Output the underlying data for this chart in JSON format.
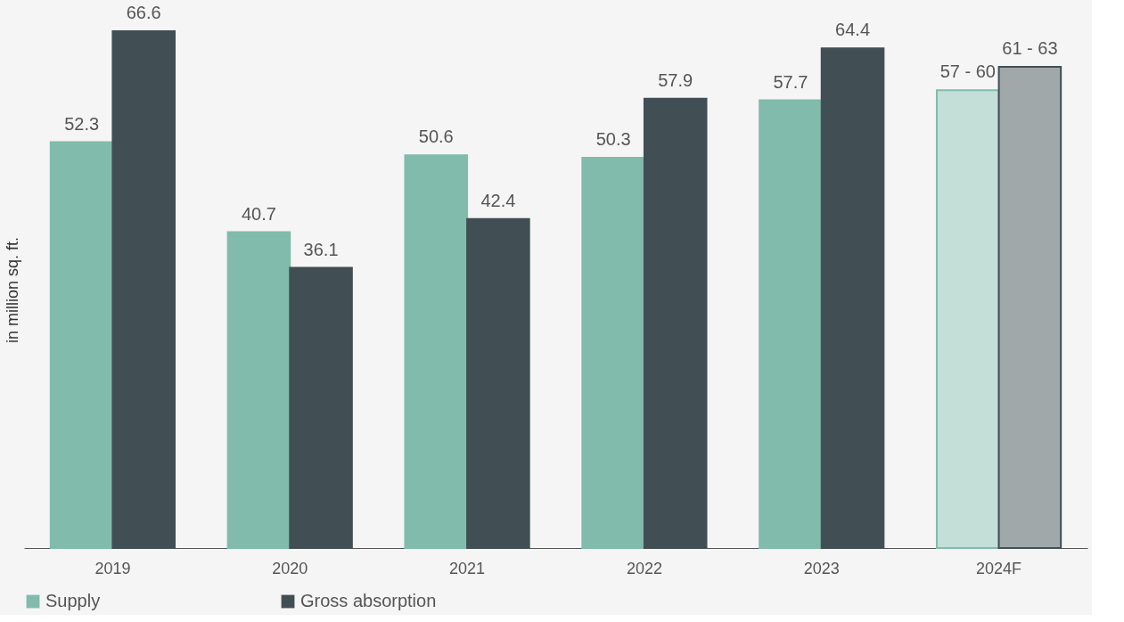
{
  "chart_data": {
    "type": "bar",
    "ylabel": "in million sq. ft.",
    "categories": [
      "2019",
      "2020",
      "2021",
      "2022",
      "2023",
      "2024F"
    ],
    "series": [
      {
        "name": "Supply",
        "color": "#81bbac",
        "colors": [
          "#81bbac",
          "#81bbac",
          "#81bbac",
          "#81bbac",
          "#81bbac",
          "#c3dfd8"
        ],
        "values": [
          52.3,
          40.7,
          50.6,
          50.3,
          57.7,
          59
        ],
        "value_labels": [
          "52.3",
          "40.7",
          "50.6",
          "50.3",
          "57.7",
          null
        ]
      },
      {
        "name": "Gross absorption",
        "color": "#414f54",
        "colors": [
          "#414f54",
          "#414f54",
          "#414f54",
          "#414f54",
          "#414f54",
          "#a0a8a9"
        ],
        "values": [
          66.6,
          36.1,
          42.4,
          57.9,
          64.4,
          62
        ],
        "value_labels": [
          "66.6",
          "36.1",
          "42.4",
          "57.9",
          "64.4",
          null
        ]
      }
    ],
    "annotations": [
      {
        "text": "57 - 60",
        "x": "2024F",
        "y": 59
      },
      {
        "text": "61 - 63",
        "x": "2024F",
        "y": 62
      }
    ],
    "legend": "bottom",
    "grid": false
  }
}
